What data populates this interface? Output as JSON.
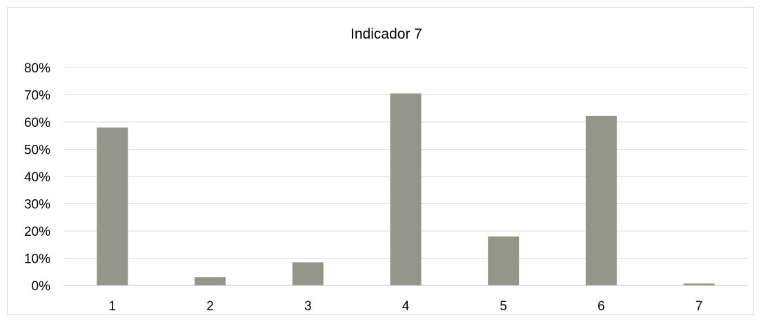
{
  "chart_data": {
    "type": "bar",
    "title": "Indicador 7",
    "xlabel": "",
    "ylabel": "",
    "categories": [
      "1",
      "2",
      "3",
      "4",
      "5",
      "6",
      "7"
    ],
    "values": [
      0.58,
      0.03,
      0.085,
      0.705,
      0.18,
      0.623,
      0.007
    ],
    "ylim": [
      0,
      0.8
    ],
    "yticks": [
      0,
      0.1,
      0.2,
      0.3,
      0.4,
      0.5,
      0.6,
      0.7,
      0.8
    ],
    "ytick_labels": [
      "0%",
      "10%",
      "20%",
      "30%",
      "40%",
      "50%",
      "60%",
      "70%",
      "80%"
    ],
    "grid": true,
    "legend": "none",
    "colors": {
      "bar": "#95968a",
      "grid": "#d9d9d9",
      "axis": "#bfbfbf"
    }
  }
}
